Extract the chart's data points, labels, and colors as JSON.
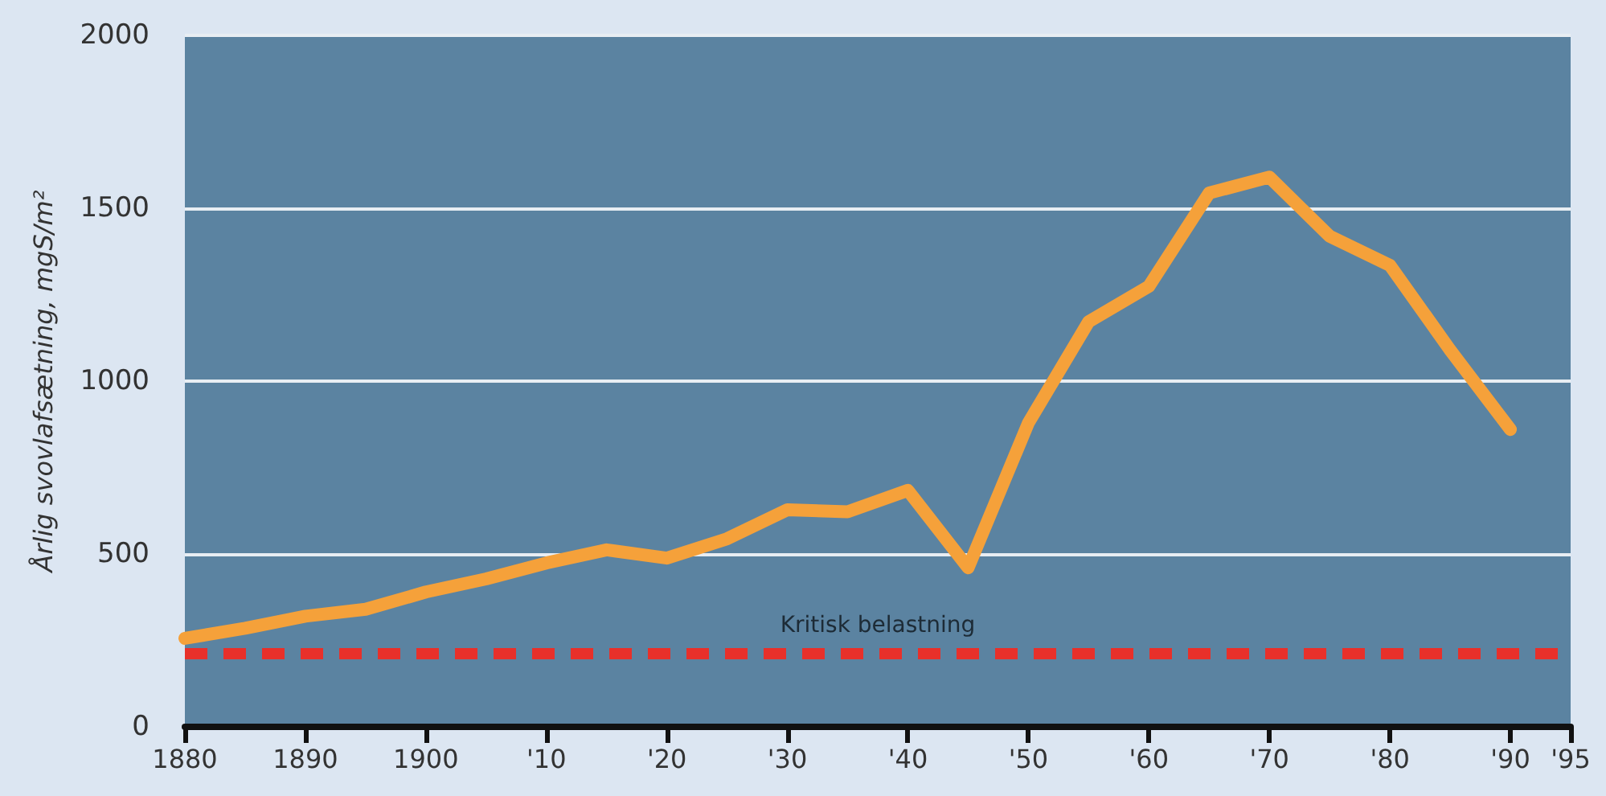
{
  "chart_data": {
    "type": "line",
    "ylabel": "Årlig svovlafsætning, mgS/m²",
    "x": [
      1880,
      1885,
      1890,
      1895,
      1900,
      1905,
      1910,
      1915,
      1920,
      1925,
      1930,
      1935,
      1940,
      1945,
      1950,
      1955,
      1960,
      1965,
      1970,
      1975,
      1980,
      1985,
      1990
    ],
    "series": [
      {
        "color": "#f5a13a",
        "values": [
          256,
          285,
          320,
          340,
          390,
          428,
          474,
          512,
          488,
          544,
          628,
          622,
          684,
          460,
          879,
          1172,
          1274,
          1544,
          1590,
          1419,
          1335,
          1090,
          860
        ]
      }
    ],
    "xlim": [
      1880,
      1995
    ],
    "xticks": [
      1880,
      1890,
      1900,
      {
        "value": 1910,
        "label": "'10"
      },
      {
        "value": 1920,
        "label": "'20"
      },
      {
        "value": 1930,
        "label": "'30"
      },
      {
        "value": 1940,
        "label": "'40"
      },
      {
        "value": 1950,
        "label": "'50"
      },
      {
        "value": 1960,
        "label": "'60"
      },
      {
        "value": 1970,
        "label": "'70"
      },
      {
        "value": 1980,
        "label": "'80"
      },
      {
        "value": 1990,
        "label": "'90"
      },
      {
        "value": 1995,
        "label": "'95"
      }
    ],
    "ylim": [
      0,
      2000
    ],
    "yticks": [
      0,
      500,
      1000,
      1500,
      2000
    ],
    "grid": "y",
    "line_style": "solid",
    "ref_lines": [
      {
        "axis": "y",
        "value": 215,
        "label": "Kritisk belastning",
        "color": "#e8302a",
        "line_style": "dashed"
      }
    ]
  }
}
